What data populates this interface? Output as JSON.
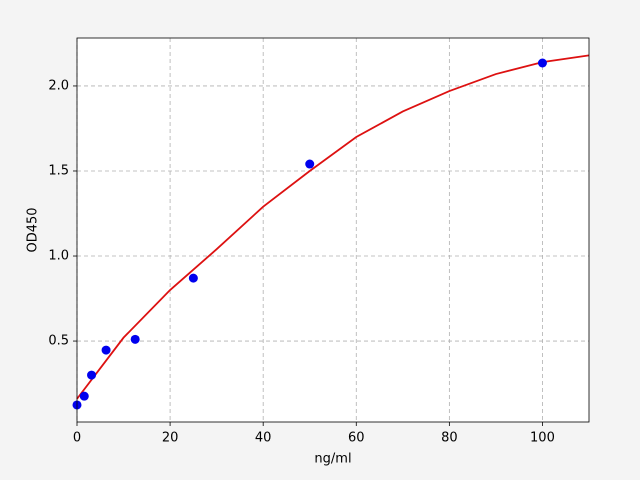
{
  "chart_data": {
    "type": "scatter",
    "xlabel": "ng/ml",
    "ylabel": "OD450",
    "xlim": [
      0,
      110
    ],
    "ylim": [
      0.024,
      2.282
    ],
    "xticks": [
      0,
      20,
      40,
      60,
      80,
      100
    ],
    "yticks": [
      0.5,
      {
        "value": 1,
        "label": "1.0"
      },
      1.5,
      {
        "value": 2,
        "label": "2.0"
      }
    ],
    "grid": true,
    "series": [
      {
        "style": "line",
        "color": "#dd1111",
        "x": [
          0,
          10,
          20,
          30,
          40,
          50,
          60,
          70,
          80,
          90,
          100,
          110
        ],
        "values": [
          0.16,
          0.52,
          0.8,
          1.04,
          1.29,
          1.5,
          1.7,
          1.85,
          1.97,
          2.07,
          2.14,
          2.18
        ]
      },
      {
        "style": "markers",
        "color": "#0000ee",
        "x": [
          0,
          1.5625,
          3.125,
          6.25,
          12.5,
          25,
          50,
          100
        ],
        "values": [
          0.124,
          0.176,
          0.3,
          0.447,
          0.51,
          0.87,
          1.541,
          2.135
        ]
      }
    ]
  }
}
